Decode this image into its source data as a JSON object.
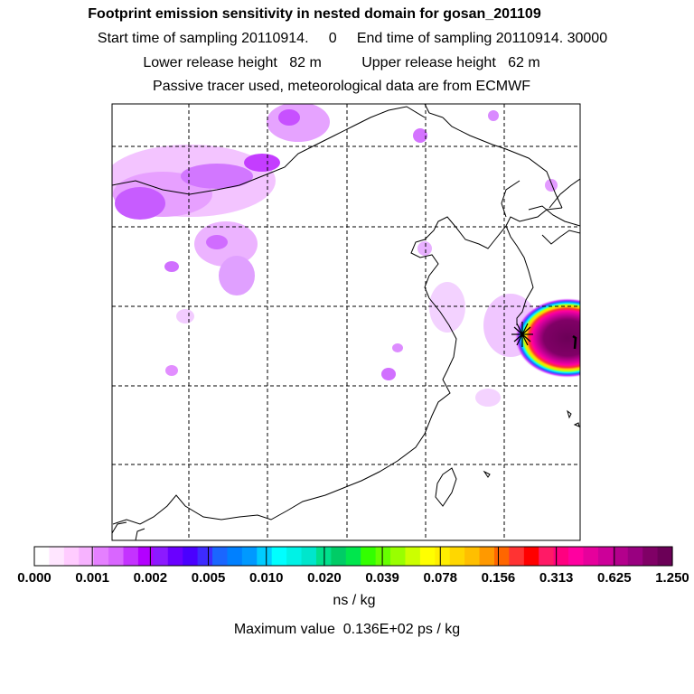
{
  "header": {
    "title": "Footprint emission sensitivity in nested domain for gosan_201109",
    "line1": "Start time of sampling 20110914.     0     End time of sampling 20110914. 30000",
    "line2": "Lower release height   82 m          Upper release height   62 m",
    "line3": "Passive tracer used, meteorological data are from ECMWF"
  },
  "legend": {
    "colors": [
      "#ffffff",
      "#ffe6ff",
      "#ffccff",
      "#f7b3ff",
      "#e580ff",
      "#d966ff",
      "#c433ff",
      "#b300ff",
      "#8c1aff",
      "#6a00ff",
      "#4a00ff",
      "#3d2bff",
      "#1a66ff",
      "#0080ff",
      "#0099ff",
      "#00ccff",
      "#00ffff",
      "#00f2e6",
      "#00e6cc",
      "#00e08c",
      "#00cc66",
      "#00e64d",
      "#33ff00",
      "#66ff00",
      "#99ff00",
      "#ccff00",
      "#ffff00",
      "#ffee00",
      "#ffd700",
      "#ffbf00",
      "#ff9900",
      "#ff6600",
      "#ff3333",
      "#ff0000",
      "#ff1a66",
      "#ff0080",
      "#ff00a0",
      "#e6009c",
      "#cc0099",
      "#b3008c",
      "#990080",
      "#800066",
      "#6b0057"
    ],
    "ticks": [
      "0.000",
      "0.001",
      "0.002",
      "0.005",
      "0.010",
      "0.020",
      "0.039",
      "0.078",
      "0.156",
      "0.313",
      "0.625",
      "1.250"
    ],
    "unit": "ns / kg",
    "max_value": "Maximum value  0.136E+02 ps / kg"
  },
  "receptor": {
    "name": "gosan",
    "symbol": "star-marker-icon"
  }
}
